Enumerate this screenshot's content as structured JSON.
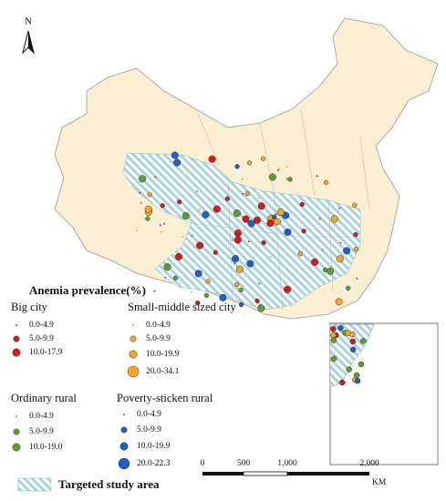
{
  "north": "N",
  "legend": {
    "title": "Anemia prevalence(%)",
    "groups": [
      {
        "name": "Big city",
        "color": "#d7191c",
        "items": [
          "0.0-4.9",
          "5.0-9.9",
          "10.0-17.9"
        ]
      },
      {
        "name": "Small-middle sized city",
        "color": "#f5a623",
        "items": [
          "0.0-4.9",
          "5.0-9.9",
          "10.0-19.9",
          "20.0-34.1"
        ]
      },
      {
        "name": "Ordinary rural",
        "color": "#5e9e2e",
        "items": [
          "0.0-4.9",
          "5.0-9.9",
          "10.0-19.0"
        ]
      },
      {
        "name": "Poverty-sticken rural",
        "color": "#1f5fc8",
        "items": [
          "0.0-4.9",
          "5.0-9.9",
          "10.0-19.9",
          "20.0-22.3"
        ]
      }
    ]
  },
  "study_area": "Targeted study area",
  "scale_bar": {
    "labels": [
      "0",
      "500",
      "1,000",
      "2,000"
    ],
    "unit": "KM"
  }
}
